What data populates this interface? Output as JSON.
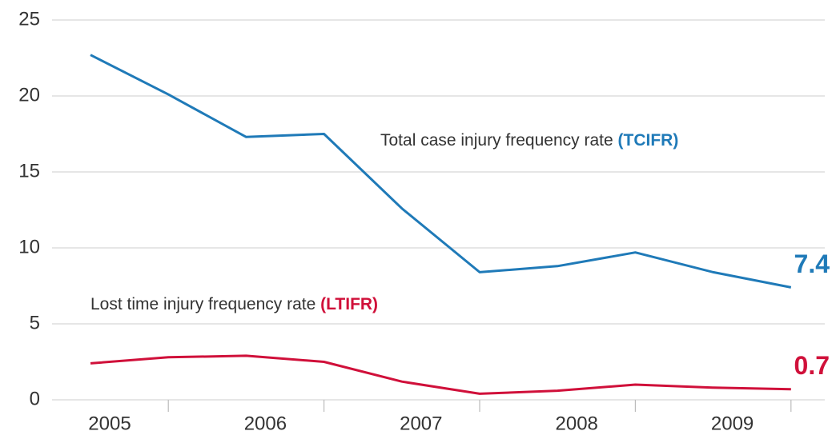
{
  "chart_data": {
    "type": "line",
    "categories": [
      "2005",
      null,
      "2006",
      null,
      "2007",
      null,
      "2008",
      null,
      "2009",
      null
    ],
    "series": [
      {
        "name": "Total case injury frequency rate",
        "abbr": "(TCIFR)",
        "color": "#1f7ab8",
        "values": [
          22.7,
          20.1,
          17.3,
          17.5,
          12.6,
          8.4,
          8.8,
          9.7,
          8.4,
          7.4
        ]
      },
      {
        "name": "Lost time injury frequency rate",
        "abbr": "(LTIFR)",
        "color": "#d0103a",
        "values": [
          2.4,
          2.8,
          2.9,
          2.5,
          1.2,
          0.4,
          0.6,
          1.0,
          0.8,
          0.7
        ]
      }
    ],
    "ylim": [
      0,
      25
    ],
    "yticks": [
      0,
      5,
      10,
      15,
      20,
      25
    ],
    "grid": true
  }
}
